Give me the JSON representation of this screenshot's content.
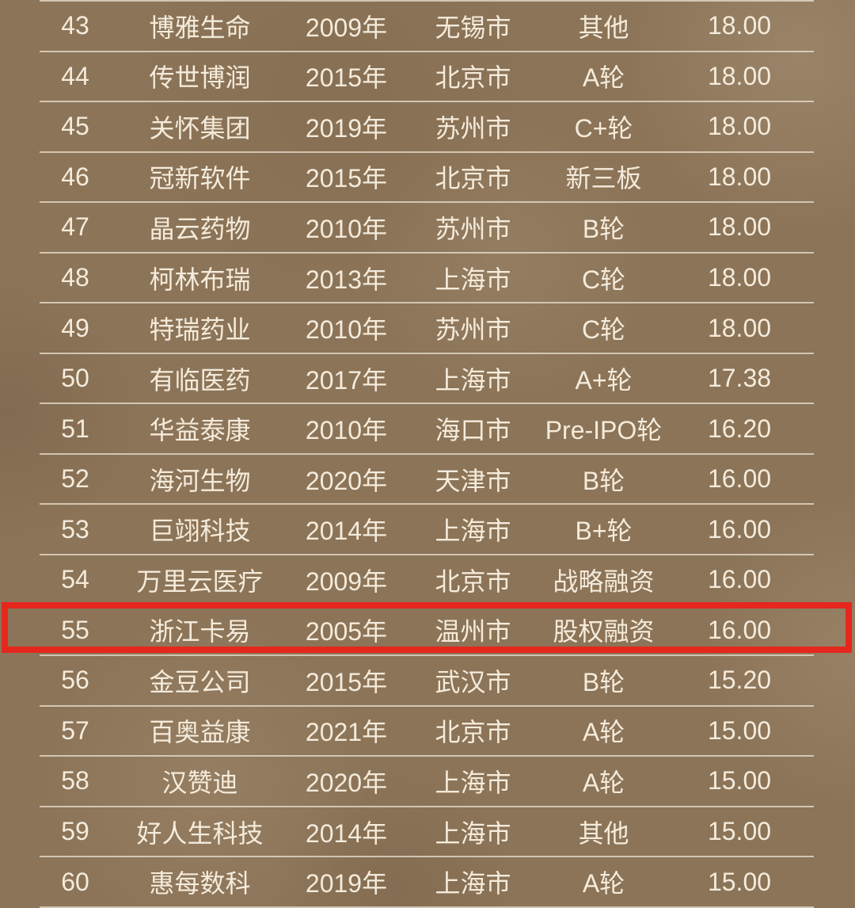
{
  "chart_data": {
    "type": "table",
    "column_keys": [
      "rank",
      "company",
      "founded_year",
      "city",
      "funding_round",
      "value"
    ],
    "rows": [
      [
        "43",
        "博雅生命",
        "2009年",
        "无锡市",
        "其他",
        "18.00"
      ],
      [
        "44",
        "传世博润",
        "2015年",
        "北京市",
        "A轮",
        "18.00"
      ],
      [
        "45",
        "关怀集团",
        "2019年",
        "苏州市",
        "C+轮",
        "18.00"
      ],
      [
        "46",
        "冠新软件",
        "2015年",
        "北京市",
        "新三板",
        "18.00"
      ],
      [
        "47",
        "晶云药物",
        "2010年",
        "苏州市",
        "B轮",
        "18.00"
      ],
      [
        "48",
        "柯林布瑞",
        "2013年",
        "上海市",
        "C轮",
        "18.00"
      ],
      [
        "49",
        "特瑞药业",
        "2010年",
        "苏州市",
        "C轮",
        "18.00"
      ],
      [
        "50",
        "有临医药",
        "2017年",
        "上海市",
        "A+轮",
        "17.38"
      ],
      [
        "51",
        "华益泰康",
        "2010年",
        "海口市",
        "Pre-IPO轮",
        "16.20"
      ],
      [
        "52",
        "海河生物",
        "2020年",
        "天津市",
        "B轮",
        "16.00"
      ],
      [
        "53",
        "巨翊科技",
        "2014年",
        "上海市",
        "B+轮",
        "16.00"
      ],
      [
        "54",
        "万里云医疗",
        "2009年",
        "北京市",
        "战略融资",
        "16.00"
      ],
      [
        "55",
        "浙江卡易",
        "2005年",
        "温州市",
        "股权融资",
        "16.00"
      ],
      [
        "56",
        "金豆公司",
        "2015年",
        "武汉市",
        "B轮",
        "15.20"
      ],
      [
        "57",
        "百奥益康",
        "2021年",
        "北京市",
        "A轮",
        "15.00"
      ],
      [
        "58",
        "汉赞迪",
        "2020年",
        "上海市",
        "A轮",
        "15.00"
      ],
      [
        "59",
        "好人生科技",
        "2014年",
        "上海市",
        "其他",
        "15.00"
      ],
      [
        "60",
        "惠每数科",
        "2019年",
        "上海市",
        "A轮",
        "15.00"
      ]
    ],
    "highlight": {
      "row_rank": "55",
      "row_index": 12,
      "style": "red-border"
    },
    "layout": {
      "grid": "horizontal-dividers-only",
      "header_row_visible": false
    }
  },
  "colors": {
    "background": "#8c7458",
    "text": "#f4ebdb",
    "divider": "#e9e1d1",
    "highlight_border": "#e5271d"
  }
}
